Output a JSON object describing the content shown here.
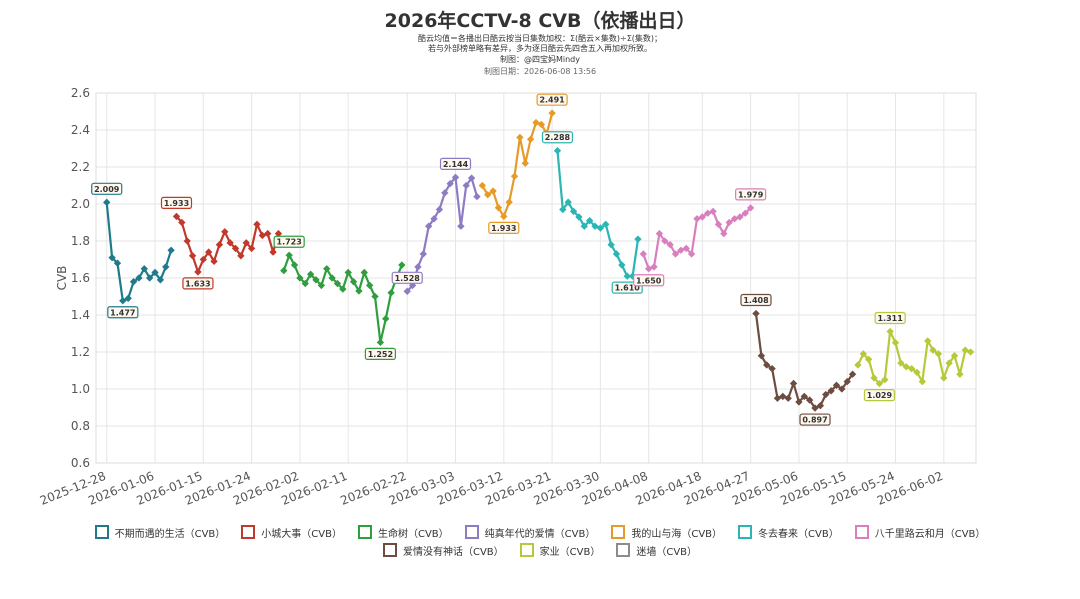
{
  "title": "2026年CCTV-8 CVB（依播出日）",
  "subtitle_lines": [
    "酷云均值＝各播出日酷云按当日集数加权：Σ(酷云×集数)÷Σ(集数)；",
    "若与外部榜单略有差异，多为逐日酷云先四舍五入再加权所致。",
    "制图：@四宝妈Mindy",
    "制图日期：2026-06-08 13:56"
  ],
  "chart_data": {
    "type": "line",
    "ylabel": "CVB",
    "xlabel": "",
    "ylim": [
      0.6,
      2.6
    ],
    "yticks": [
      "0.6",
      "0.8",
      "1.0",
      "1.2",
      "1.4",
      "1.6",
      "1.8",
      "2.0",
      "2.2",
      "2.4",
      "2.6"
    ],
    "xrange": [
      "2025-12-26",
      "2026-06-08"
    ],
    "xticks": [
      "2025-12-28",
      "2026-01-06",
      "2026-01-15",
      "2026-01-24",
      "2026-02-02",
      "2026-02-11",
      "2026-02-22",
      "2026-03-03",
      "2026-03-12",
      "2026-03-21",
      "2026-03-30",
      "2026-04-08",
      "2026-04-18",
      "2026-04-27",
      "2026-05-06",
      "2026-05-15",
      "2026-05-24",
      "2026-06-02"
    ],
    "grid": true,
    "legend_position": "bottom",
    "series": [
      {
        "name": "不期而遇的生活（CVB）",
        "color": "#1f7a8c",
        "x": [
          "2025-12-28",
          "2025-12-29",
          "2025-12-30",
          "2025-12-31",
          "2026-01-01",
          "2026-01-02",
          "2026-01-03",
          "2026-01-04",
          "2026-01-05",
          "2026-01-06",
          "2026-01-07",
          "2026-01-08",
          "2026-01-09"
        ],
        "y": [
          2.009,
          1.71,
          1.68,
          1.477,
          1.49,
          1.58,
          1.6,
          1.65,
          1.6,
          1.63,
          1.59,
          1.66,
          1.75
        ],
        "labels": [
          {
            "x": "2025-12-28",
            "y": 2.009,
            "text": "2.009",
            "pos": "above"
          },
          {
            "x": "2025-12-31",
            "y": 1.477,
            "text": "1.477",
            "pos": "below"
          }
        ]
      },
      {
        "name": "小城大事（CVB）",
        "color": "#c0392b",
        "x": [
          "2026-01-10",
          "2026-01-11",
          "2026-01-12",
          "2026-01-13",
          "2026-01-14",
          "2026-01-15",
          "2026-01-16",
          "2026-01-17",
          "2026-01-18",
          "2026-01-19",
          "2026-01-20",
          "2026-01-21",
          "2026-01-22",
          "2026-01-23",
          "2026-01-24",
          "2026-01-25",
          "2026-01-26",
          "2026-01-27",
          "2026-01-28",
          "2026-01-29"
        ],
        "y": [
          1.933,
          1.9,
          1.8,
          1.72,
          1.633,
          1.7,
          1.74,
          1.69,
          1.78,
          1.85,
          1.79,
          1.76,
          1.72,
          1.79,
          1.76,
          1.89,
          1.83,
          1.84,
          1.74,
          1.84
        ],
        "labels": [
          {
            "x": "2026-01-10",
            "y": 1.933,
            "text": "1.933",
            "pos": "above"
          },
          {
            "x": "2026-01-14",
            "y": 1.633,
            "text": "1.633",
            "pos": "below"
          }
        ]
      },
      {
        "name": "生命树（CVB）",
        "color": "#2e9e3e",
        "x": [
          "2026-01-30",
          "2026-01-31",
          "2026-02-01",
          "2026-02-02",
          "2026-02-03",
          "2026-02-04",
          "2026-02-05",
          "2026-02-06",
          "2026-02-07",
          "2026-02-08",
          "2026-02-09",
          "2026-02-10",
          "2026-02-11",
          "2026-02-12",
          "2026-02-13",
          "2026-02-14",
          "2026-02-15",
          "2026-02-16",
          "2026-02-17",
          "2026-02-18",
          "2026-02-19",
          "2026-02-20",
          "2026-02-21"
        ],
        "y": [
          1.64,
          1.723,
          1.67,
          1.6,
          1.57,
          1.62,
          1.59,
          1.56,
          1.65,
          1.6,
          1.57,
          1.54,
          1.63,
          1.58,
          1.53,
          1.63,
          1.56,
          1.5,
          1.252,
          1.38,
          1.52,
          1.6,
          1.67
        ],
        "labels": [
          {
            "x": "2026-01-31",
            "y": 1.723,
            "text": "1.723",
            "pos": "above"
          },
          {
            "x": "2026-02-17",
            "y": 1.252,
            "text": "1.252",
            "pos": "below"
          }
        ]
      },
      {
        "name": "纯真年代的爱情（CVB）",
        "color": "#8e7cc3",
        "x": [
          "2026-02-22",
          "2026-02-23",
          "2026-02-24",
          "2026-02-25",
          "2026-02-26",
          "2026-02-27",
          "2026-02-28",
          "2026-03-01",
          "2026-03-02",
          "2026-03-03",
          "2026-03-04",
          "2026-03-05",
          "2026-03-06",
          "2026-03-07"
        ],
        "y": [
          1.528,
          1.56,
          1.66,
          1.73,
          1.88,
          1.92,
          1.97,
          2.06,
          2.11,
          2.144,
          1.88,
          2.1,
          2.14,
          2.04
        ],
        "labels": [
          {
            "x": "2026-03-03",
            "y": 2.144,
            "text": "2.144",
            "pos": "above"
          },
          {
            "x": "2026-02-22",
            "y": 1.528,
            "text": "1.528",
            "pos": "above"
          }
        ]
      },
      {
        "name": "我的山与海（CVB）",
        "color": "#e69a28",
        "x": [
          "2026-03-08",
          "2026-03-09",
          "2026-03-10",
          "2026-03-11",
          "2026-03-12",
          "2026-03-13",
          "2026-03-14",
          "2026-03-15",
          "2026-03-16",
          "2026-03-17",
          "2026-03-18",
          "2026-03-19",
          "2026-03-20",
          "2026-03-21"
        ],
        "y": [
          2.1,
          2.05,
          2.07,
          1.98,
          1.933,
          2.01,
          2.15,
          2.36,
          2.22,
          2.35,
          2.44,
          2.43,
          2.38,
          2.491
        ],
        "labels": [
          {
            "x": "2026-03-21",
            "y": 2.491,
            "text": "2.491",
            "pos": "above"
          },
          {
            "x": "2026-03-12",
            "y": 1.933,
            "text": "1.933",
            "pos": "below"
          }
        ]
      },
      {
        "name": "冬去春来（CVB）",
        "color": "#2bb5b5",
        "x": [
          "2026-03-22",
          "2026-03-23",
          "2026-03-24",
          "2026-03-25",
          "2026-03-26",
          "2026-03-27",
          "2026-03-28",
          "2026-03-29",
          "2026-03-30",
          "2026-03-31",
          "2026-04-01",
          "2026-04-02",
          "2026-04-03",
          "2026-04-04",
          "2026-04-05",
          "2026-04-06"
        ],
        "y": [
          2.288,
          1.97,
          2.01,
          1.96,
          1.93,
          1.88,
          1.91,
          1.88,
          1.87,
          1.89,
          1.78,
          1.73,
          1.67,
          1.61,
          1.61,
          1.81
        ],
        "labels": [
          {
            "x": "2026-03-22",
            "y": 2.288,
            "text": "2.288",
            "pos": "above"
          },
          {
            "x": "2026-04-04",
            "y": 1.61,
            "text": "1.610",
            "pos": "below"
          }
        ]
      },
      {
        "name": "八千里路云和月（CVB）",
        "color": "#d97fc0",
        "x": [
          "2026-04-07",
          "2026-04-08",
          "2026-04-09",
          "2026-04-10",
          "2026-04-11",
          "2026-04-12",
          "2026-04-13",
          "2026-04-14",
          "2026-04-15",
          "2026-04-16",
          "2026-04-17",
          "2026-04-18",
          "2026-04-19",
          "2026-04-20",
          "2026-04-21",
          "2026-04-22",
          "2026-04-23",
          "2026-04-24",
          "2026-04-25",
          "2026-04-26",
          "2026-04-27"
        ],
        "y": [
          1.73,
          1.65,
          1.66,
          1.84,
          1.8,
          1.78,
          1.73,
          1.75,
          1.76,
          1.73,
          1.92,
          1.93,
          1.95,
          1.96,
          1.89,
          1.84,
          1.9,
          1.92,
          1.93,
          1.95,
          1.979
        ],
        "labels": [
          {
            "x": "2026-04-27",
            "y": 1.979,
            "text": "1.979",
            "pos": "above"
          },
          {
            "x": "2026-04-08",
            "y": 1.65,
            "text": "1.650",
            "pos": "below"
          }
        ]
      },
      {
        "name": "爱情没有神话（CVB）",
        "color": "#6d4c41",
        "x": [
          "2026-04-28",
          "2026-04-29",
          "2026-04-30",
          "2026-05-01",
          "2026-05-02",
          "2026-05-03",
          "2026-05-04",
          "2026-05-05",
          "2026-05-06",
          "2026-05-07",
          "2026-05-08",
          "2026-05-09",
          "2026-05-10",
          "2026-05-11",
          "2026-05-12",
          "2026-05-13",
          "2026-05-14",
          "2026-05-15",
          "2026-05-16"
        ],
        "y": [
          1.408,
          1.18,
          1.13,
          1.11,
          0.95,
          0.96,
          0.95,
          1.03,
          0.93,
          0.96,
          0.94,
          0.897,
          0.91,
          0.97,
          0.99,
          1.02,
          1.0,
          1.04,
          1.08
        ],
        "labels": [
          {
            "x": "2026-04-28",
            "y": 1.408,
            "text": "1.408",
            "pos": "above"
          },
          {
            "x": "2026-05-09",
            "y": 0.897,
            "text": "0.897",
            "pos": "below"
          }
        ]
      },
      {
        "name": "家业（CVB）",
        "color": "#b7c93b",
        "x": [
          "2026-05-17",
          "2026-05-18",
          "2026-05-19",
          "2026-05-20",
          "2026-05-21",
          "2026-05-22",
          "2026-05-23",
          "2026-05-24",
          "2026-05-25",
          "2026-05-26",
          "2026-05-27",
          "2026-05-28",
          "2026-05-29",
          "2026-05-30",
          "2026-05-31",
          "2026-06-01",
          "2026-06-02",
          "2026-06-03",
          "2026-06-04",
          "2026-06-05",
          "2026-06-06",
          "2026-06-07"
        ],
        "y": [
          1.13,
          1.19,
          1.16,
          1.06,
          1.029,
          1.05,
          1.311,
          1.25,
          1.14,
          1.12,
          1.11,
          1.09,
          1.04,
          1.26,
          1.21,
          1.19,
          1.06,
          1.14,
          1.18,
          1.08,
          1.21,
          1.2
        ],
        "labels": [
          {
            "x": "2026-05-23",
            "y": 1.311,
            "text": "1.311",
            "pos": "above"
          },
          {
            "x": "2026-05-21",
            "y": 1.029,
            "text": "1.029",
            "pos": "below"
          }
        ]
      },
      {
        "name": "迷墙（CVB）",
        "color": "#8c8c8c",
        "x": [],
        "y": [],
        "labels": []
      }
    ]
  }
}
